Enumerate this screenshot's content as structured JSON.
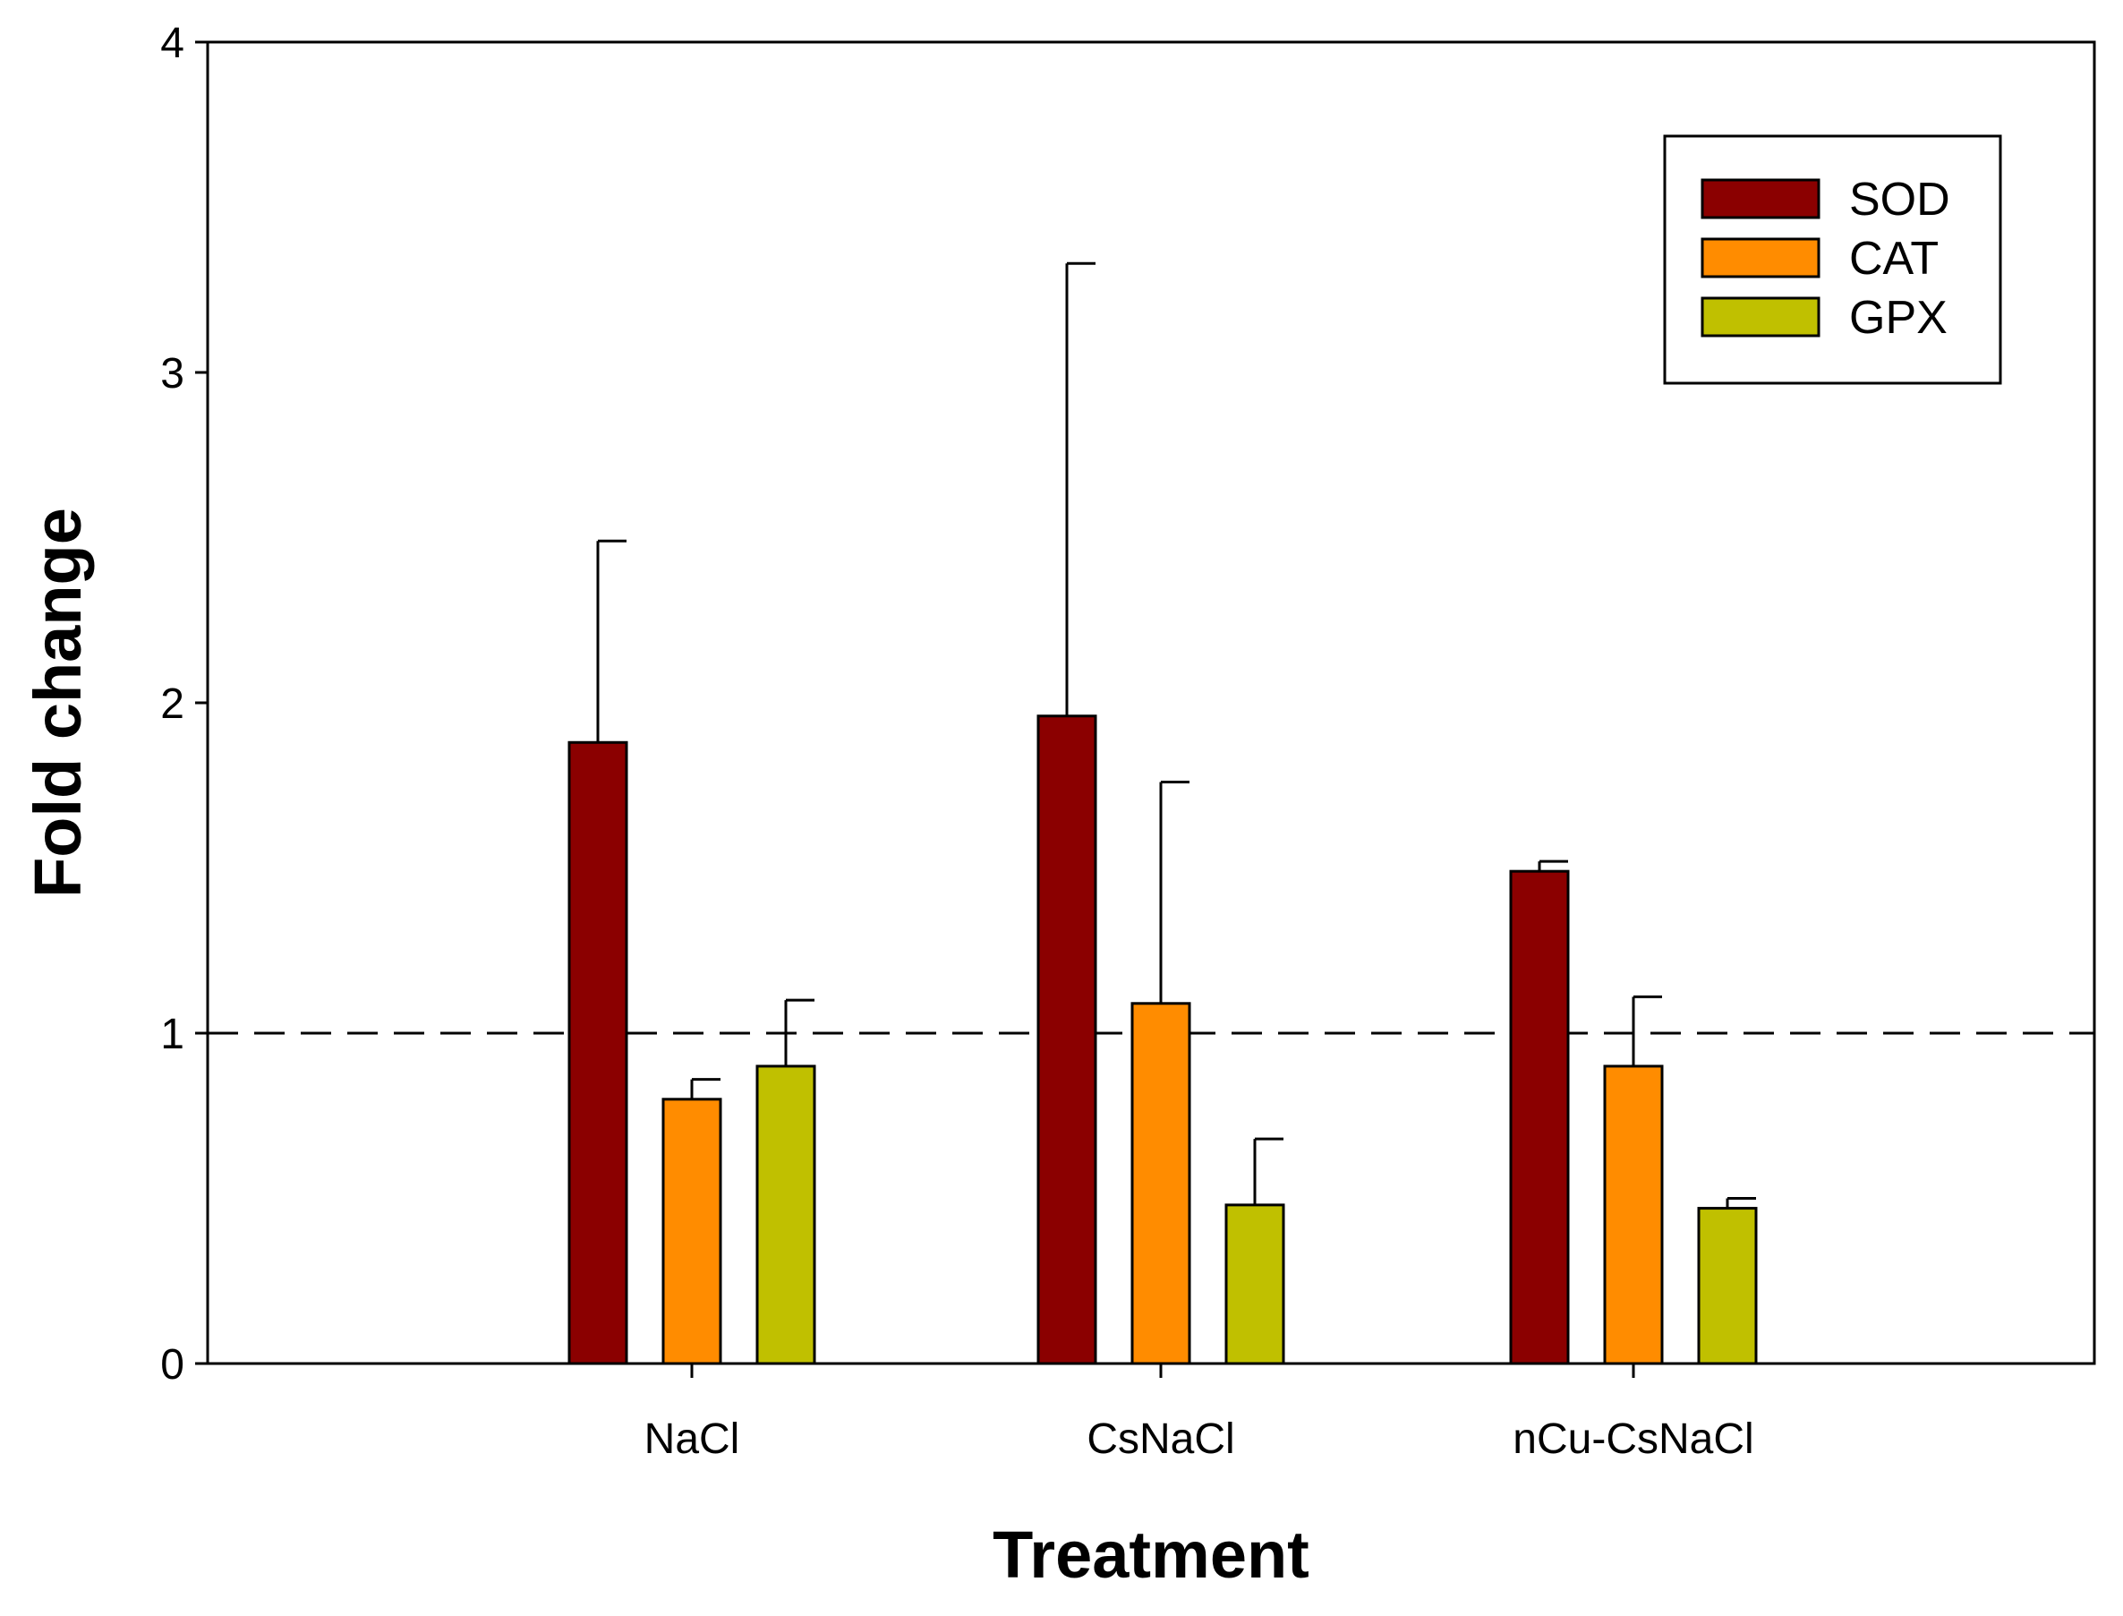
{
  "chart_data": {
    "type": "bar",
    "title": "",
    "xlabel": "Treatment",
    "ylabel": "Fold change",
    "ylim": [
      0,
      4
    ],
    "yticks": [
      "0",
      "1",
      "2",
      "3",
      "4"
    ],
    "categories": [
      "NaCl",
      "CsNaCl",
      "nCu-CsNaCl"
    ],
    "series": [
      {
        "name": "SOD",
        "color": "#8b0000",
        "values": [
          1.88,
          1.96,
          1.49
        ],
        "errors": [
          0.61,
          1.37,
          0.03
        ]
      },
      {
        "name": "CAT",
        "color": "#ff8c00",
        "values": [
          0.8,
          1.09,
          0.9
        ],
        "errors": [
          0.06,
          0.67,
          0.21
        ]
      },
      {
        "name": "GPX",
        "color": "#c0c000",
        "values": [
          0.9,
          0.48,
          0.47
        ],
        "errors": [
          0.2,
          0.2,
          0.03
        ]
      }
    ],
    "reference_line": {
      "value": 1,
      "style": "dashed"
    },
    "legend_position": "top-right",
    "grid": false
  }
}
